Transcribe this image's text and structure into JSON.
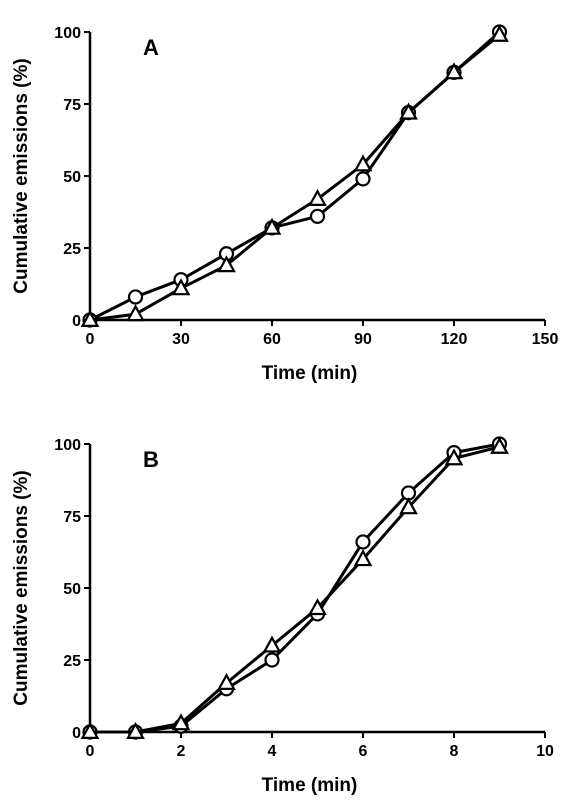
{
  "chart_data": [
    {
      "type": "line",
      "panel_label": "A",
      "xlabel": "Time (min)",
      "ylabel": "Cumulative emissions (%)",
      "xlim": [
        0,
        150
      ],
      "ylim": [
        0,
        100
      ],
      "xticks": [
        0,
        30,
        60,
        90,
        120,
        150
      ],
      "yticks": [
        0,
        25,
        50,
        75,
        100
      ],
      "grid": false,
      "series": [
        {
          "marker": "circle",
          "color": "#000000",
          "x": [
            0,
            15,
            30,
            45,
            60,
            75,
            90,
            105,
            120,
            135
          ],
          "y": [
            0,
            8,
            14,
            23,
            32,
            36,
            49,
            72,
            86,
            100
          ]
        },
        {
          "marker": "triangle",
          "color": "#000000",
          "x": [
            0,
            15,
            30,
            45,
            60,
            75,
            90,
            105,
            120,
            135
          ],
          "y": [
            0,
            2,
            11,
            19,
            32,
            42,
            54,
            72,
            86,
            99
          ]
        }
      ]
    },
    {
      "type": "line",
      "panel_label": "B",
      "xlabel": "Time (min)",
      "ylabel": "Cumulative emissions (%)",
      "xlim": [
        0,
        10
      ],
      "ylim": [
        0,
        100
      ],
      "xticks": [
        0,
        2,
        4,
        6,
        8,
        10
      ],
      "yticks": [
        0,
        25,
        50,
        75,
        100
      ],
      "grid": false,
      "series": [
        {
          "marker": "circle",
          "color": "#000000",
          "x": [
            0,
            1,
            2,
            3,
            4,
            5,
            6,
            7,
            8,
            9
          ],
          "y": [
            0,
            0,
            2,
            15,
            25,
            41,
            66,
            83,
            97,
            100
          ]
        },
        {
          "marker": "triangle",
          "color": "#000000",
          "x": [
            0,
            1,
            2,
            3,
            4,
            5,
            6,
            7,
            8,
            9
          ],
          "y": [
            0,
            0,
            3,
            17,
            30,
            43,
            60,
            78,
            95,
            99
          ]
        }
      ]
    }
  ]
}
